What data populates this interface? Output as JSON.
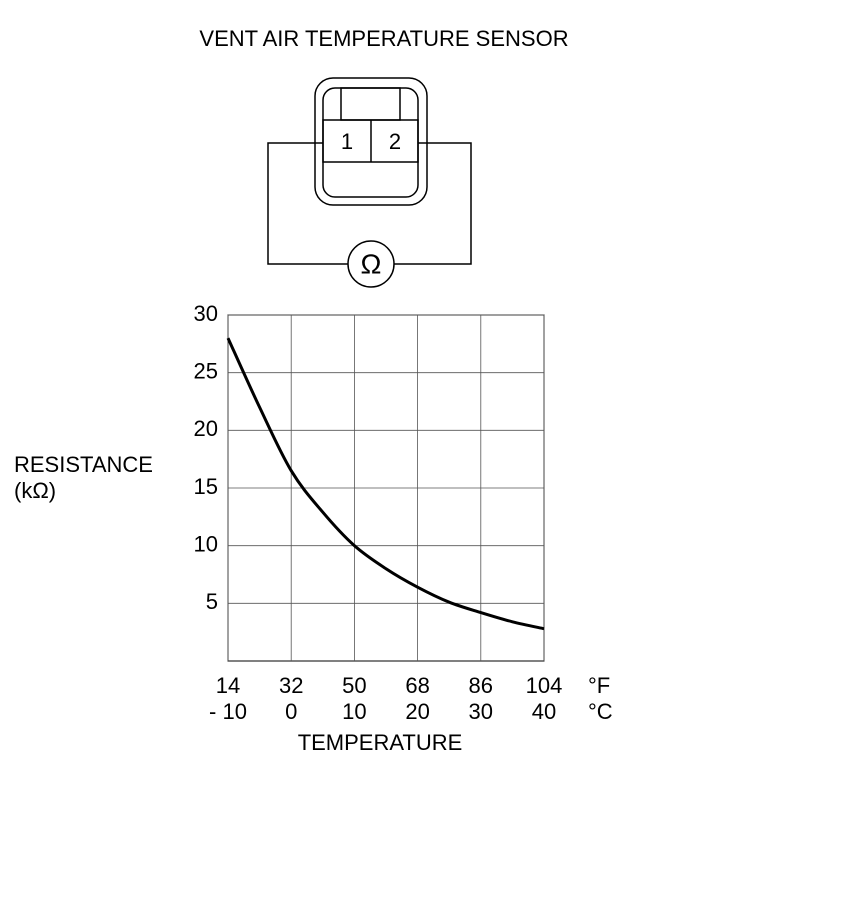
{
  "diagram": {
    "title": "VENT AIR TEMPERATURE SENSOR",
    "pins": [
      "1",
      "2"
    ],
    "meter": "Ω"
  },
  "chart_data": {
    "type": "line",
    "y_label": [
      "RESISTANCE",
      "(kΩ)"
    ],
    "x_label": "TEMPERATURE",
    "x_unit": "°C",
    "x2_unit": "°F",
    "x": [
      -10,
      -5,
      0,
      5,
      10,
      15,
      20,
      25,
      30,
      35,
      40
    ],
    "values": [
      28,
      22,
      16.5,
      12.9,
      10,
      8,
      6.4,
      5.1,
      4.2,
      3.4,
      2.8
    ],
    "color": "#000000",
    "xlim": [
      -10,
      40
    ],
    "xticks": [
      {
        "value": -10,
        "label": "- 10"
      },
      0,
      10,
      20,
      30,
      40
    ],
    "x2lim": [
      14,
      104
    ],
    "x2ticks": [
      14,
      32,
      50,
      68,
      86,
      104
    ],
    "ylim": [
      0,
      30
    ],
    "yticks": [
      5,
      10,
      15,
      20,
      25,
      30
    ],
    "grid": true
  }
}
